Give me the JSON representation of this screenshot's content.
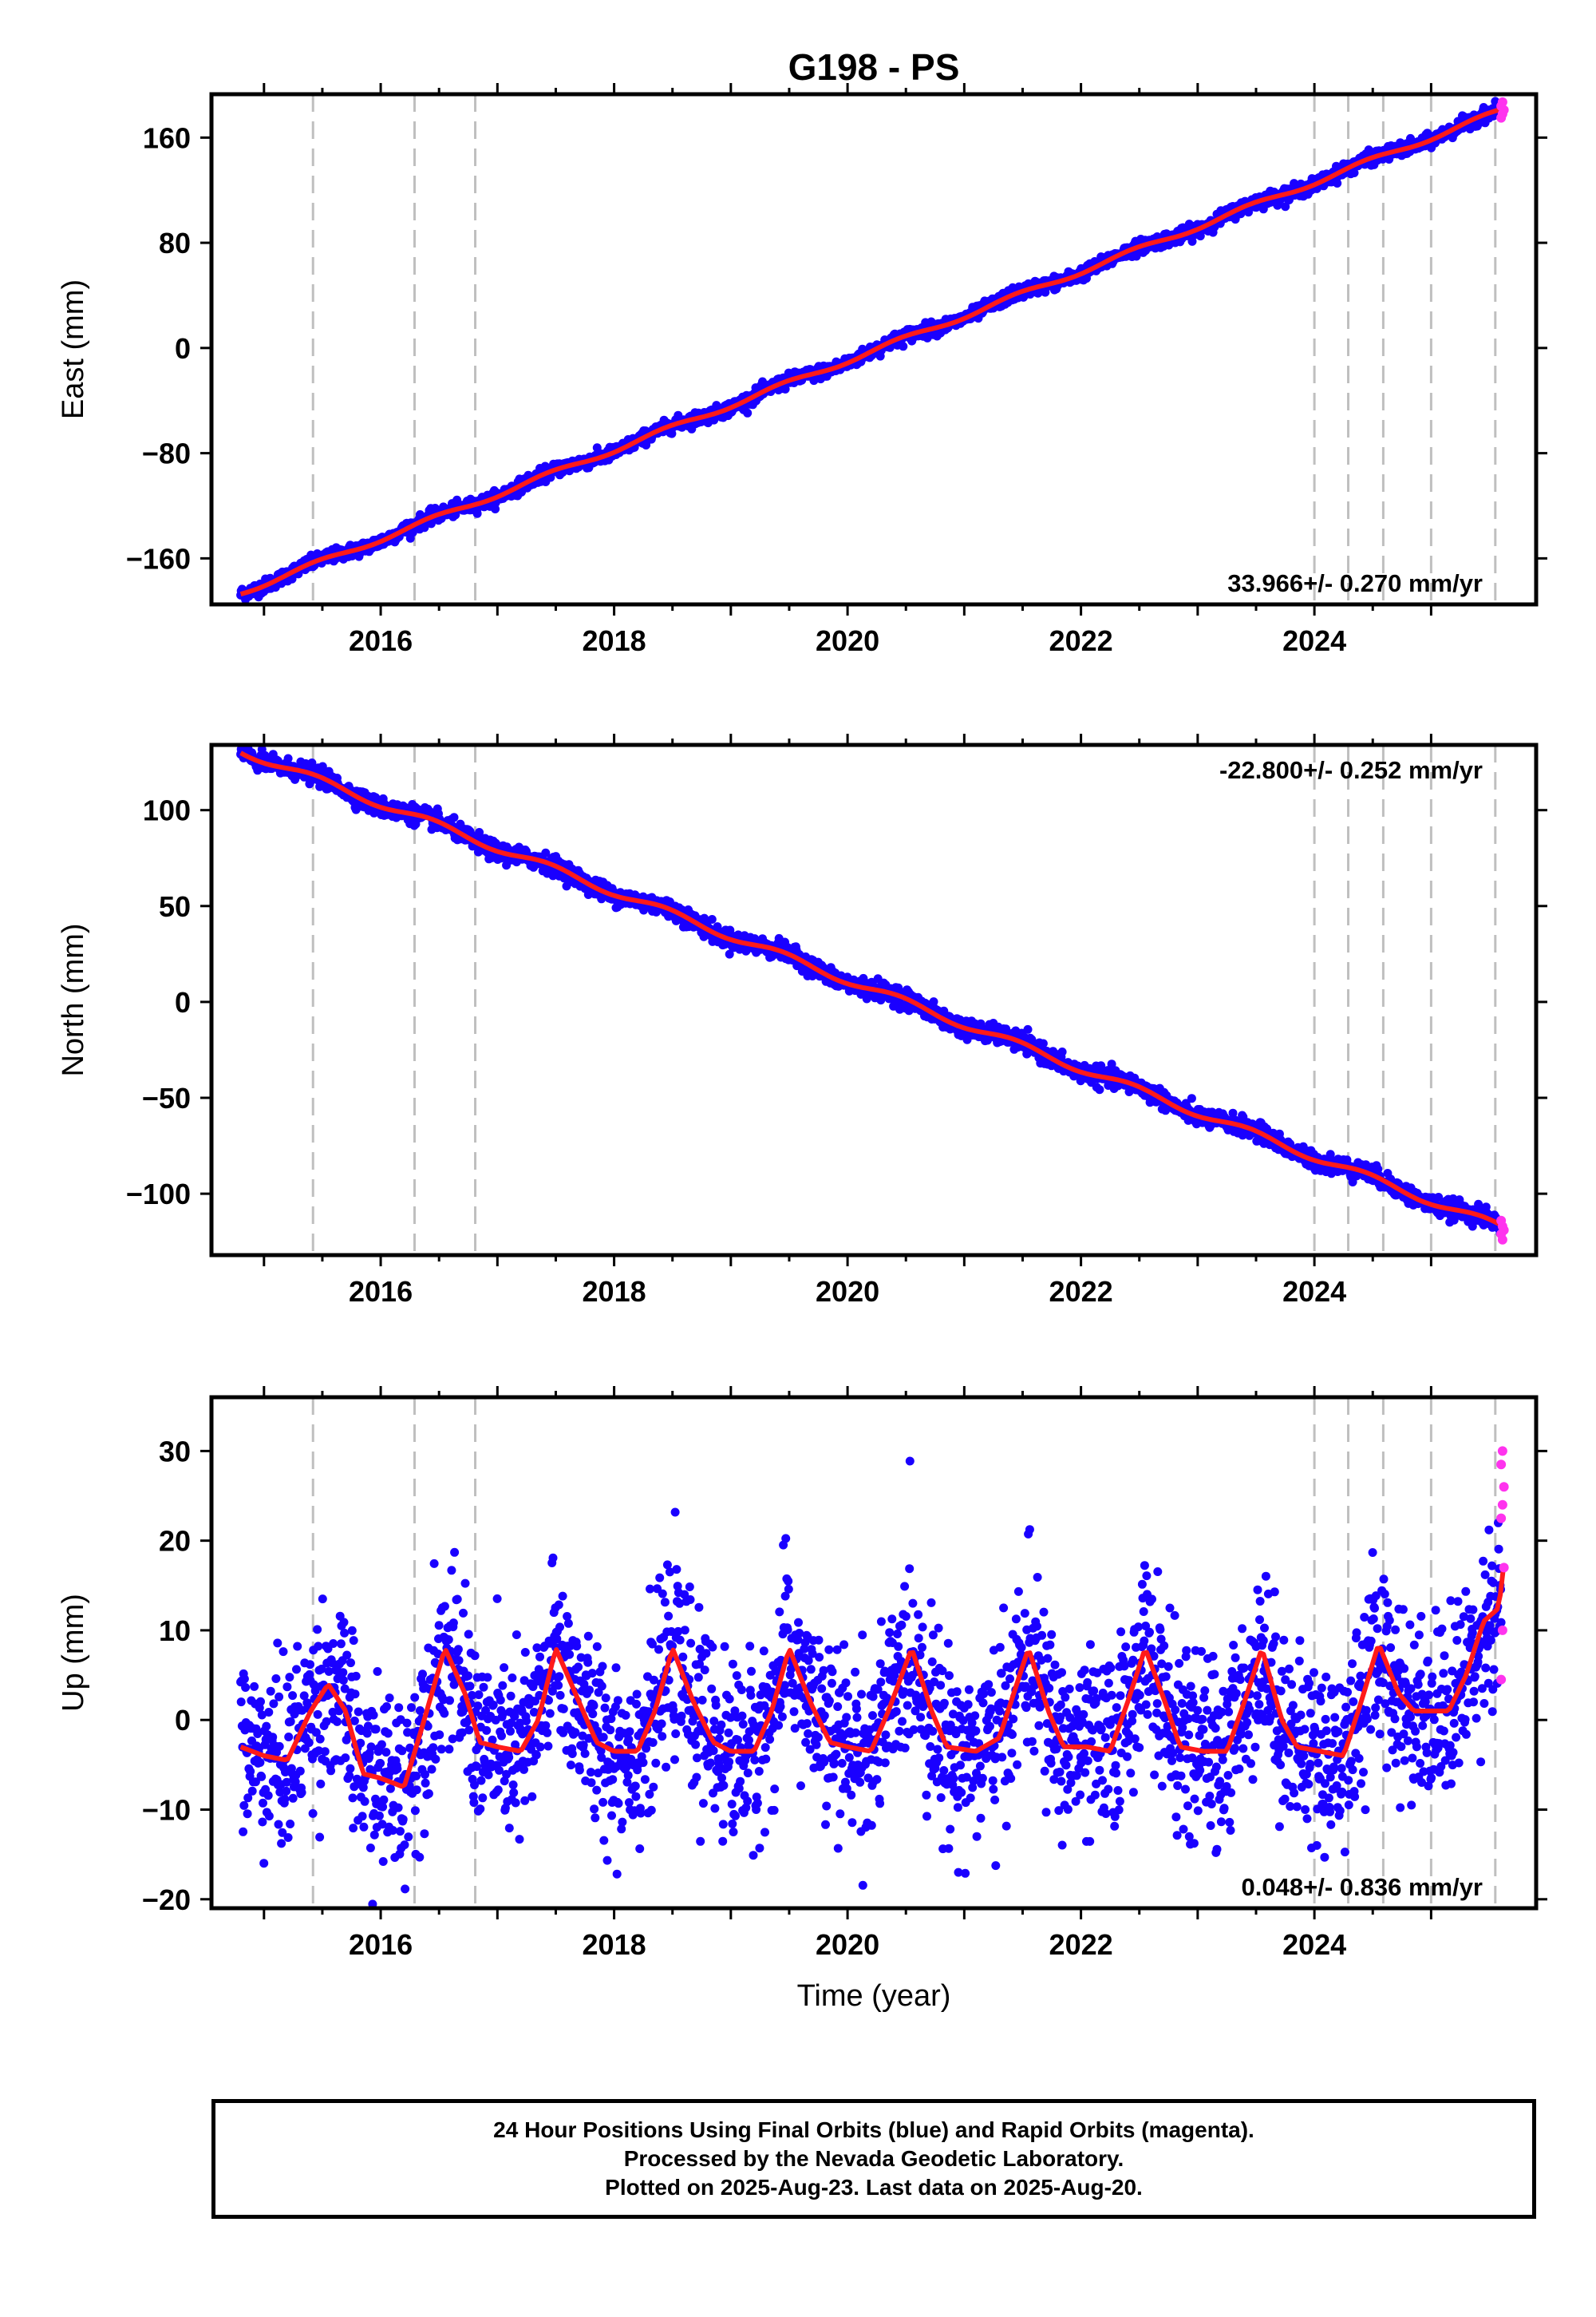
{
  "page_title": "G198 - PS",
  "chart_data": [
    {
      "type": "scatter",
      "panel": "east",
      "ylabel": "East (mm)",
      "xlabel": "",
      "xlim": [
        2014.55,
        2025.9
      ],
      "ylim": [
        -195,
        193
      ],
      "yticks": [
        -160,
        -80,
        0,
        80,
        160
      ],
      "yticklabels": [
        "−160",
        "−80",
        "0",
        "80",
        "160"
      ],
      "xticks": [
        2016,
        2018,
        2020,
        2022,
        2024
      ],
      "xticklabels": [
        "2016",
        "2018",
        "2020",
        "2022",
        "2024"
      ],
      "rate_text": "33.966+/- 0.270 mm/yr",
      "rate_position": "bottom-right",
      "trend": {
        "t0": 2014.8,
        "v0": -186,
        "t1": 2025.62,
        "v1": 181
      },
      "scatter_sigma": 2.5,
      "seasonal_amplitude": 2,
      "rapid_values": [
        175,
        178,
        181,
        184,
        187
      ]
    },
    {
      "type": "scatter",
      "panel": "north",
      "ylabel": "North (mm)",
      "xlabel": "",
      "xlim": [
        2014.55,
        2025.9
      ],
      "ylim": [
        -132,
        134
      ],
      "yticks": [
        -100,
        -50,
        0,
        50,
        100
      ],
      "yticklabels": [
        "−100",
        "−50",
        "0",
        "50",
        "100"
      ],
      "xticks": [
        2016,
        2018,
        2020,
        2022,
        2024
      ],
      "xticklabels": [
        "2016",
        "2018",
        "2020",
        "2022",
        "2024"
      ],
      "rate_text": "-22.800+/- 0.252 mm/yr",
      "rate_position": "top-right",
      "trend": {
        "t0": 2014.8,
        "v0": 131,
        "t1": 2025.62,
        "v1": -118
      },
      "scatter_sigma": 2.3,
      "seasonal_amplitude": 2,
      "rapid_values": [
        -114,
        -117,
        -119,
        -121,
        -124
      ]
    },
    {
      "type": "scatter",
      "panel": "up",
      "ylabel": "Up (mm)",
      "xlabel": "Time (year)",
      "xlim": [
        2014.55,
        2025.9
      ],
      "ylim": [
        -21,
        36
      ],
      "yticks": [
        -20,
        -10,
        0,
        10,
        20,
        30
      ],
      "yticklabels": [
        "−20",
        "−10",
        "0",
        "10",
        "20",
        "30"
      ],
      "xticks": [
        2016,
        2018,
        2020,
        2022,
        2024
      ],
      "xticklabels": [
        "2016",
        "2018",
        "2020",
        "2022",
        "2024"
      ],
      "rate_text": "0.048+/- 0.836 mm/yr",
      "rate_position": "bottom-right",
      "model_curve": [
        [
          2014.8,
          -3
        ],
        [
          2015.0,
          -4
        ],
        [
          2015.2,
          -4.5
        ],
        [
          2015.4,
          1
        ],
        [
          2015.55,
          4
        ],
        [
          2015.7,
          1
        ],
        [
          2015.85,
          -6
        ],
        [
          2016.0,
          -6.5
        ],
        [
          2016.2,
          -7.5
        ],
        [
          2016.35,
          -1
        ],
        [
          2016.55,
          8
        ],
        [
          2016.72,
          3
        ],
        [
          2016.85,
          -2.5
        ],
        [
          2017.0,
          -3
        ],
        [
          2017.2,
          -3.5
        ],
        [
          2017.35,
          0
        ],
        [
          2017.5,
          8
        ],
        [
          2017.7,
          2
        ],
        [
          2017.85,
          -2.5
        ],
        [
          2018.0,
          -3.5
        ],
        [
          2018.2,
          -3.5
        ],
        [
          2018.35,
          1
        ],
        [
          2018.5,
          8
        ],
        [
          2018.68,
          2
        ],
        [
          2018.85,
          -2.5
        ],
        [
          2019.0,
          -3.5
        ],
        [
          2019.2,
          -3.5
        ],
        [
          2019.35,
          1
        ],
        [
          2019.5,
          8
        ],
        [
          2019.68,
          2
        ],
        [
          2019.85,
          -2.5
        ],
        [
          2020.0,
          -3
        ],
        [
          2020.2,
          -3.5
        ],
        [
          2020.35,
          1
        ],
        [
          2020.55,
          8
        ],
        [
          2020.72,
          1
        ],
        [
          2020.85,
          -3
        ],
        [
          2021.1,
          -3.5
        ],
        [
          2021.3,
          -2
        ],
        [
          2021.4,
          2
        ],
        [
          2021.55,
          8
        ],
        [
          2021.72,
          1
        ],
        [
          2021.85,
          -3
        ],
        [
          2022.05,
          -3
        ],
        [
          2022.25,
          -3.5
        ],
        [
          2022.4,
          2
        ],
        [
          2022.55,
          8
        ],
        [
          2022.72,
          2
        ],
        [
          2022.85,
          -3
        ],
        [
          2023.05,
          -3.5
        ],
        [
          2023.25,
          -3.5
        ],
        [
          2023.4,
          2
        ],
        [
          2023.55,
          8
        ],
        [
          2023.72,
          0
        ],
        [
          2023.85,
          -3
        ],
        [
          2024.05,
          -3.5
        ],
        [
          2024.25,
          -4
        ],
        [
          2024.4,
          2
        ],
        [
          2024.55,
          8.5
        ],
        [
          2024.72,
          3
        ],
        [
          2024.85,
          1
        ],
        [
          2025.0,
          1
        ],
        [
          2025.15,
          1
        ],
        [
          2025.3,
          5
        ],
        [
          2025.45,
          11
        ],
        [
          2025.58,
          12.5
        ],
        [
          2025.62,
          17
        ]
      ],
      "scatter_sigma": 5,
      "rapid_values": [
        4.5,
        10,
        17,
        22.5,
        24,
        26,
        28.5,
        30
      ]
    }
  ],
  "offset_epochs": [
    2015.42,
    2016.29,
    2016.81,
    2024.0,
    2024.29,
    2024.59,
    2025.0,
    2025.55
  ],
  "series_colors": {
    "final": "#1a00ff",
    "rapid": "#ff33ee",
    "model": "#ff1a1a",
    "offset": "#bfbfbf"
  },
  "footer": {
    "line1": "24 Hour Positions Using Final Orbits (blue) and Rapid Orbits (magenta).",
    "line2": "Processed by the Nevada Geodetic Laboratory.",
    "line3": "Plotted on 2025-Aug-23. Last data on 2025-Aug-20."
  }
}
